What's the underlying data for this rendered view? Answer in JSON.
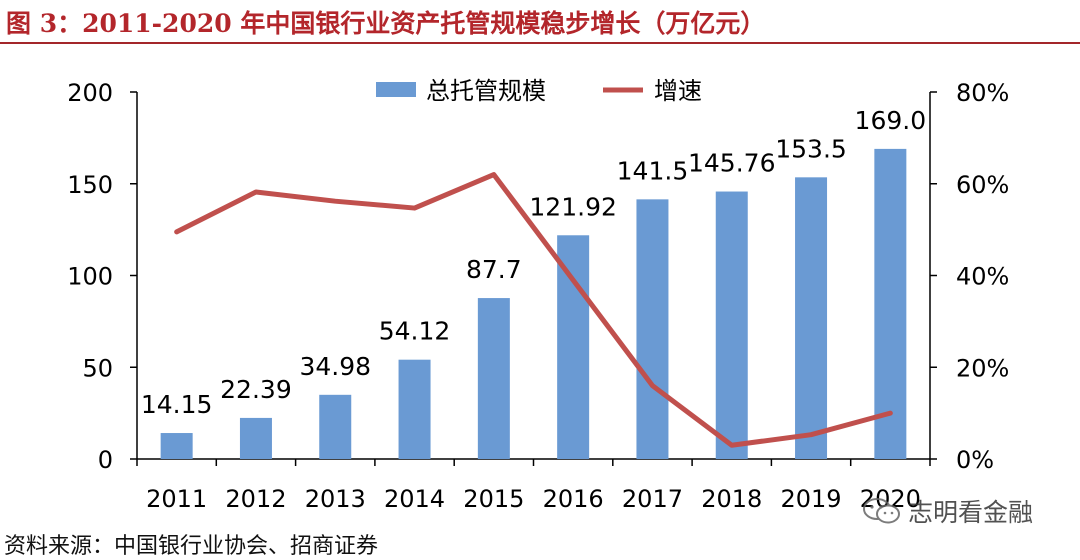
{
  "figure": {
    "title": "图 3：2011-2020 年中国银行业资产托管规模稳步增长（万亿元）",
    "source": "资料来源：中国银行业协会、招商证券",
    "watermark": "志明看金融"
  },
  "colors": {
    "title": "#b3262b",
    "bar": "#6a9ad3",
    "line": "#c0504d",
    "axis": "#000000"
  },
  "chart_data": {
    "type": "bar",
    "title": "",
    "categories": [
      "2011",
      "2012",
      "2013",
      "2014",
      "2015",
      "2016",
      "2017",
      "2018",
      "2019",
      "2020"
    ],
    "series": [
      {
        "name": "总托管规模",
        "type": "bar",
        "axis": "left",
        "values": [
          14.15,
          22.39,
          34.98,
          54.12,
          87.7,
          121.92,
          141.5,
          145.76,
          153.5,
          169.0
        ],
        "labels": [
          "14.15",
          "22.39",
          "34.98",
          "54.12",
          "87.7",
          "121.92",
          "141.5",
          "145.76",
          "153.5",
          "169.0"
        ]
      },
      {
        "name": "增速",
        "type": "line",
        "axis": "right",
        "values": [
          49.5,
          58.2,
          56.2,
          54.7,
          62.0,
          39.0,
          16.0,
          3.0,
          5.3,
          10.0
        ]
      }
    ],
    "y_left": {
      "min": 0,
      "max": 200,
      "ticks": [
        "0",
        "50",
        "100",
        "150",
        "200"
      ]
    },
    "y_right": {
      "min": 0,
      "max": 80,
      "ticks": [
        "0%",
        "20%",
        "40%",
        "60%",
        "80%"
      ]
    },
    "grid": false,
    "legend_position": "top-center"
  }
}
